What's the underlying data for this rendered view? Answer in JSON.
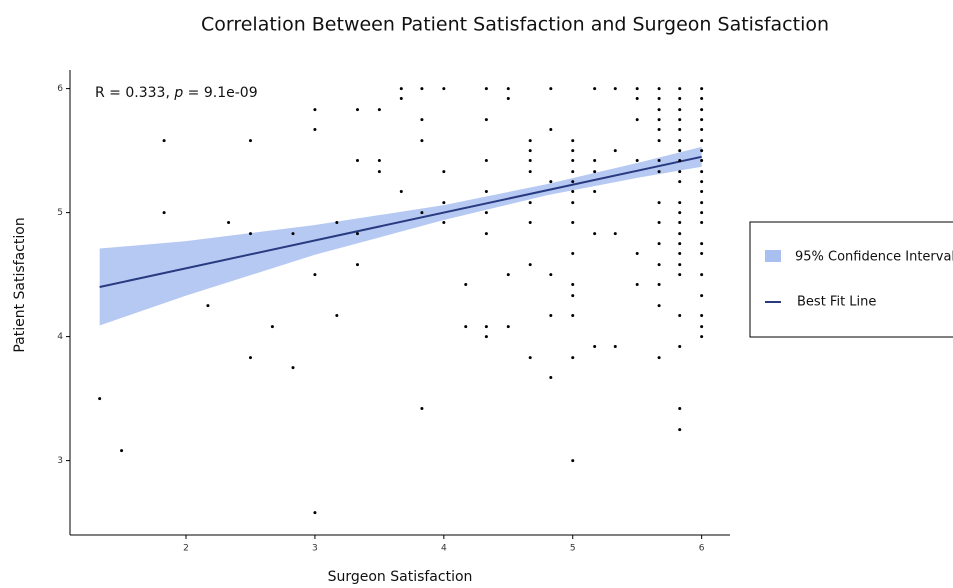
{
  "chart_data": {
    "type": "scatter",
    "title": "Correlation Between Patient Satisfaction and Surgeon Satisfaction",
    "x_label": "Surgeon Satisfaction",
    "y_label": "Patient Satisfaction",
    "annotation": {
      "before": "R = 0.333, ",
      "italic": "p",
      "after": " = 9.1e-09"
    },
    "xlim": [
      1.1,
      6.22
    ],
    "ylim": [
      2.4,
      6.15
    ],
    "xticks": [
      2,
      3,
      4,
      5,
      6
    ],
    "yticks": [
      3,
      4,
      5,
      6
    ],
    "legend": "right",
    "points": {
      "color": "#000000",
      "x": [
        1.33,
        1.5,
        1.83,
        1.83,
        2.17,
        2.33,
        2.5,
        2.5,
        2.5,
        2.67,
        2.83,
        2.83,
        3,
        3,
        3,
        3,
        3.17,
        3.17,
        3.33,
        3.33,
        3.33,
        3.33,
        3.5,
        3.5,
        3.5,
        3.67,
        3.67,
        3.67,
        3.83,
        3.83,
        3.83,
        3.83,
        3.83,
        4,
        4,
        4,
        4,
        4.17,
        4.17,
        4.33,
        4.33,
        4.33,
        4.33,
        4.33,
        4.33,
        4.33,
        4.33,
        4.5,
        4.5,
        4.5,
        4.5,
        4.67,
        4.67,
        4.67,
        4.67,
        4.67,
        4.67,
        4.67,
        4.67,
        4.83,
        4.83,
        4.83,
        4.83,
        4.83,
        4.83,
        5,
        5,
        5,
        5,
        5,
        5,
        5,
        5,
        5,
        5,
        5,
        5,
        5,
        5,
        5.17,
        5.17,
        5.17,
        5.17,
        5.17,
        5.17,
        5.33,
        5.33,
        5.33,
        5.33,
        5.5,
        5.5,
        5.5,
        5.5,
        5.5,
        5.5,
        5.67,
        5.67,
        5.67,
        5.67,
        5.67,
        5.67,
        5.67,
        5.67,
        5.67,
        5.67,
        5.67,
        5.67,
        5.67,
        5.67,
        5.67,
        5.83,
        5.83,
        5.83,
        5.83,
        5.83,
        5.83,
        5.83,
        5.83,
        5.83,
        5.83,
        5.83,
        5.83,
        5.83,
        5.83,
        5.83,
        5.83,
        5.83,
        5.83,
        5.83,
        5.83,
        5.83,
        5.83,
        6,
        6,
        6,
        6,
        6,
        6,
        6,
        6,
        6,
        6,
        6,
        6,
        6,
        6,
        6,
        6,
        6,
        6,
        6,
        6,
        6
      ],
      "values": [
        3.5,
        3.08,
        5.58,
        5.0,
        4.25,
        4.92,
        5.58,
        4.83,
        3.83,
        4.08,
        4.83,
        3.75,
        5.83,
        5.67,
        4.5,
        2.58,
        4.92,
        4.17,
        5.83,
        5.42,
        4.83,
        4.58,
        5.83,
        5.42,
        5.33,
        6,
        5.92,
        5.17,
        6,
        5.75,
        5.58,
        5.0,
        3.42,
        6,
        5.33,
        5.08,
        4.92,
        4.42,
        4.08,
        6,
        5.75,
        5.42,
        5.17,
        5.0,
        4.83,
        4.08,
        4.0,
        6,
        5.92,
        4.5,
        4.08,
        5.58,
        5.5,
        5.42,
        5.33,
        5.08,
        4.92,
        4.58,
        3.83,
        6,
        5.67,
        5.25,
        4.5,
        4.17,
        3.67,
        5.58,
        5.5,
        5.42,
        5.33,
        5.25,
        5.17,
        5.08,
        4.92,
        4.67,
        4.42,
        4.33,
        4.17,
        3.83,
        3.0,
        6,
        5.42,
        5.33,
        5.17,
        4.83,
        3.92,
        6,
        5.5,
        4.83,
        3.92,
        6,
        5.92,
        5.75,
        5.42,
        4.67,
        4.42,
        6,
        5.92,
        5.83,
        5.75,
        5.67,
        5.58,
        5.42,
        5.33,
        5.08,
        4.92,
        4.75,
        4.58,
        4.42,
        4.25,
        3.83,
        6,
        5.92,
        5.83,
        5.75,
        5.67,
        5.58,
        5.5,
        5.42,
        5.33,
        5.25,
        5.08,
        5.0,
        4.92,
        4.83,
        4.75,
        4.67,
        4.58,
        4.5,
        4.17,
        3.92,
        3.42,
        3.25,
        6,
        5.92,
        5.83,
        5.75,
        5.67,
        5.58,
        5.5,
        5.42,
        5.33,
        5.25,
        5.17,
        5.08,
        5.0,
        4.92,
        4.75,
        4.67,
        4.5,
        4.33,
        4.17,
        4.08,
        4.0
      ]
    },
    "band": {
      "name": "95% Confidence Interval",
      "color": "#a9bff0",
      "x": [
        1.33,
        2,
        3,
        4,
        4.8,
        5.5,
        6
      ],
      "lower": [
        4.09,
        4.33,
        4.66,
        4.94,
        5.14,
        5.28,
        5.37
      ],
      "upper": [
        4.71,
        4.77,
        4.9,
        5.06,
        5.23,
        5.4,
        5.53
      ]
    },
    "line": {
      "name": "Best Fit Line",
      "color": "#283a80",
      "x": [
        1.33,
        6
      ],
      "values": [
        4.4,
        5.45
      ]
    }
  }
}
